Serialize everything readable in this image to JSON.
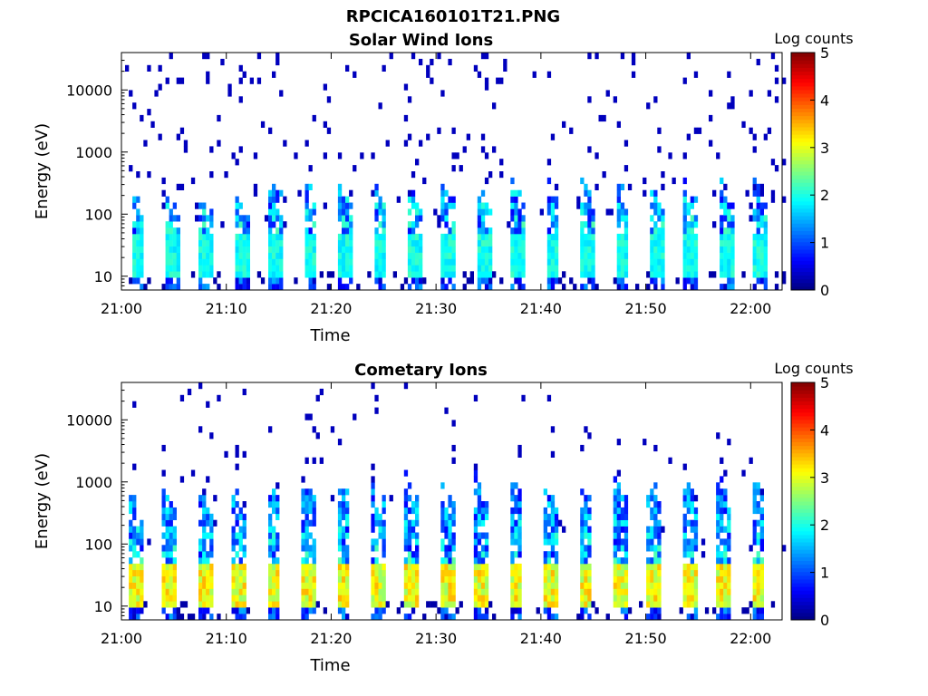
{
  "figure": {
    "title": "RPCICA160101T21.PNG"
  },
  "chart_data": [
    {
      "type": "heatmap",
      "title": "Solar Wind Ions",
      "xlabel": "Time",
      "ylabel": "Energy (eV)",
      "x_ticks": [
        "21:00",
        "21:10",
        "21:20",
        "21:30",
        "21:40",
        "21:50",
        "22:00"
      ],
      "x_range": [
        "21:00",
        "22:03"
      ],
      "y_scale": "log",
      "y_ticks": [
        "10",
        "100",
        "1000",
        "10000"
      ],
      "y_range": [
        6,
        40000
      ],
      "colorbar": {
        "label": "Log counts",
        "range": [
          0,
          5
        ],
        "ticks": [
          "0",
          "1",
          "2",
          "3",
          "4",
          "5"
        ],
        "colormap": "jet"
      },
      "pattern": {
        "burst_period_min": 3.3,
        "first_burst_min": 0.7,
        "burst_count": 19,
        "core_energy_ev": [
          10,
          45
        ],
        "core_log_counts": [
          1.7,
          2.2
        ],
        "burst_top_ev": [
          60,
          450
        ],
        "background_log_counts": 0.3
      }
    },
    {
      "type": "heatmap",
      "title": "Cometary Ions",
      "xlabel": "Time",
      "ylabel": "Energy (eV)",
      "x_ticks": [
        "21:00",
        "21:10",
        "21:20",
        "21:30",
        "21:40",
        "21:50",
        "22:00"
      ],
      "x_range": [
        "21:00",
        "22:03"
      ],
      "y_scale": "log",
      "y_ticks": [
        "10",
        "100",
        "1000",
        "10000"
      ],
      "y_range": [
        6,
        40000
      ],
      "colorbar": {
        "label": "Log counts",
        "range": [
          0,
          5
        ],
        "ticks": [
          "0",
          "1",
          "2",
          "3",
          "4",
          "5"
        ],
        "colormap": "jet"
      },
      "pattern": {
        "burst_period_min": 3.3,
        "first_burst_min": 0.5,
        "burst_count": 19,
        "core_energy_ev": [
          10,
          45
        ],
        "core_log_counts": [
          2.6,
          3.5
        ],
        "burst_top_ev": [
          200,
          1500
        ],
        "background_log_counts": 0.3
      }
    }
  ]
}
